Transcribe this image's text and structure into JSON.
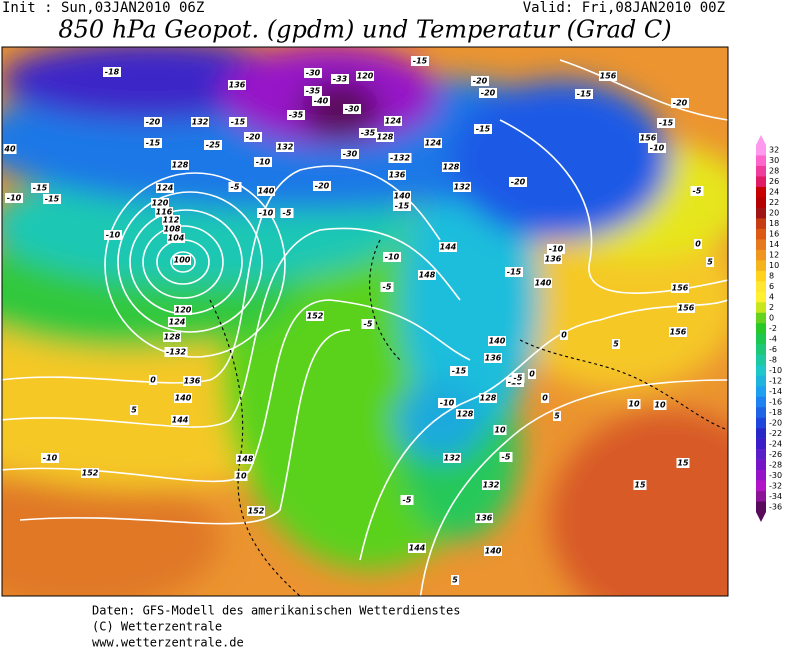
{
  "header": {
    "init": "Init : Sun,03JAN2010 06Z",
    "valid": "Valid: Fri,08JAN2010 00Z",
    "title": "850 hPa Geopot. (gpdm) und Temperatur (Grad C)"
  },
  "colorbar": {
    "ticks": [
      32,
      30,
      28,
      26,
      24,
      22,
      20,
      18,
      16,
      14,
      12,
      10,
      8,
      6,
      4,
      2,
      0,
      -2,
      -4,
      -6,
      -8,
      -10,
      -12,
      -14,
      -16,
      -18,
      -20,
      -22,
      -24,
      -26,
      -28,
      -30,
      -32,
      -34,
      -36
    ],
    "colors": [
      "#ff99ee",
      "#ff66cc",
      "#f03c9c",
      "#e01a64",
      "#c80000",
      "#b40000",
      "#a01414",
      "#c83c14",
      "#dc5a14",
      "#e6781e",
      "#f0961e",
      "#f5b41e",
      "#ffd21e",
      "#ffe632",
      "#fff032",
      "#c8e61e",
      "#64d21e",
      "#28c828",
      "#1ec850",
      "#1ec878",
      "#1ec8a0",
      "#1ec8c8",
      "#1eb4dc",
      "#1ea0f0",
      "#1e82f0",
      "#1e64e6",
      "#1e46dc",
      "#2828c8",
      "#3c1ec8",
      "#5a1ec8",
      "#7814c8",
      "#9614c8",
      "#b414c8",
      "#8c1496",
      "#5a0a5a"
    ]
  },
  "contour_labels": [
    "-18",
    "-30",
    "-33",
    "120",
    "136",
    "-35",
    "-40",
    "-35",
    "-30",
    "124",
    "-35",
    "128",
    "-20",
    "132",
    "-15",
    "-15",
    "-25",
    "-20",
    "132",
    "-30",
    "-132",
    "124",
    "40",
    "128",
    "-10",
    "136",
    "128",
    "132",
    "-20",
    "-15",
    "-10",
    "-15",
    "124",
    "-5",
    "140",
    "-20",
    "140",
    "-15",
    "-10",
    "-5",
    "120",
    "116",
    "112",
    "108",
    "104",
    "100",
    "-10",
    "144",
    "-10",
    "-10",
    "136",
    "148",
    "-15",
    "140",
    "-5",
    "152",
    "-5",
    "120",
    "124",
    "128",
    "-132",
    "0",
    "136",
    "140",
    "5",
    "144",
    "148",
    "10",
    "152",
    "-10",
    "152",
    "140",
    "136",
    "-15",
    "-10",
    "-10",
    "128",
    "128",
    "132",
    "-5",
    "132",
    "136",
    "144",
    "140",
    "-5",
    "0",
    "5",
    "10",
    "10",
    "15",
    "15",
    "156",
    "156",
    "156",
    "-15",
    "-20",
    "-15",
    "156",
    "-10",
    "-5",
    "-20",
    "-20",
    "-15",
    "-15",
    "5",
    "0",
    "156",
    "5",
    "0",
    "-5",
    "0",
    "10",
    "5"
  ],
  "footer": {
    "line1": "Daten: GFS-Modell des amerikanischen Wetterdienstes",
    "line2": "(C) Wetterzentrale",
    "line3": "www.wetterzentrale.de"
  }
}
